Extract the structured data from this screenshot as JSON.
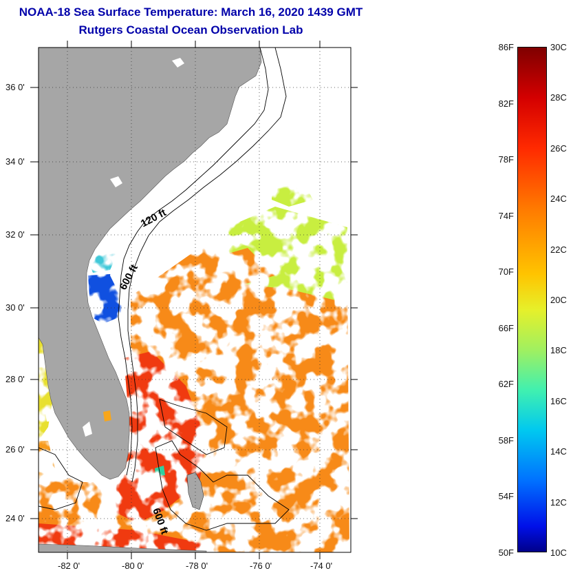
{
  "title": "NOAA-18 Sea Surface Temperature:  March 16, 2020 1439 GMT",
  "subtitle": "Rutgers Coastal Ocean Observation Lab",
  "map": {
    "lon_range": [
      -83.0,
      -72.9
    ],
    "lat_range": [
      22.9,
      37.2
    ],
    "lon_ticks": [
      "-82 0'",
      "-80 0'",
      "-78 0'",
      "-76 0'",
      "-74 0'"
    ],
    "lat_ticks": [
      "36 0'",
      "34 0'",
      "32 0'",
      "30 0'",
      "28 0'",
      "26 0'",
      "24 0'"
    ],
    "contours": [
      "120 ft",
      "600 ft",
      "600 ft"
    ],
    "colors": {
      "land": "#a6a6a6",
      "cloud": "#ffffff",
      "warm_gulf_stream": "#f03a10",
      "sargasso": "#f78a18",
      "cool_shelf": "#c8ee40",
      "cold_coastal": "#1050e0"
    }
  },
  "colorbar": {
    "fahrenheit_labels": [
      "86F",
      "82F",
      "78F",
      "74F",
      "70F",
      "66F",
      "62F",
      "58F",
      "54F",
      "50F"
    ],
    "celsius_labels": [
      "30C",
      "28C",
      "26C",
      "24C",
      "22C",
      "20C",
      "18C",
      "16C",
      "14C",
      "12C",
      "10C"
    ],
    "range_c": [
      10,
      30
    ],
    "range_f": [
      50,
      86
    ],
    "colormap": "jet"
  }
}
